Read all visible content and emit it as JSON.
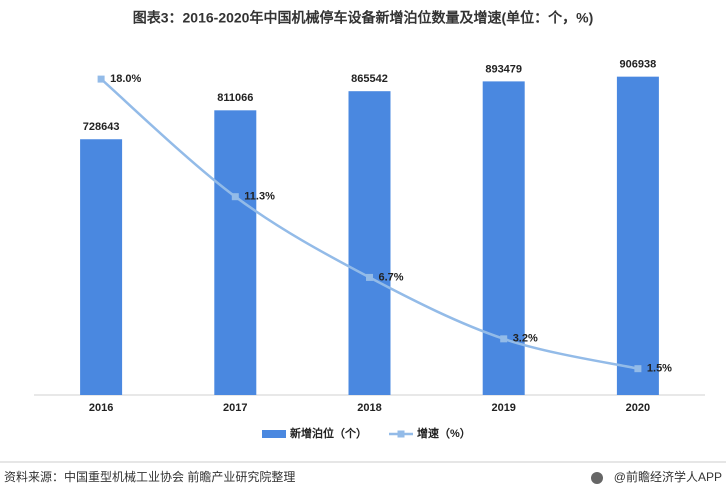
{
  "chart_data": {
    "type": "bar-line",
    "title": "图表3：2016-2020年中国机械停车设备新增泊位数量及增速(单位：个，%)",
    "categories": [
      "2016",
      "2017",
      "2018",
      "2019",
      "2020"
    ],
    "series": [
      {
        "name": "新增泊位（个）",
        "type": "bar",
        "color": "#4a88e0",
        "values": [
          728643,
          811066,
          865542,
          893479,
          906938
        ]
      },
      {
        "name": "增速（%）",
        "type": "line",
        "axis": "y2",
        "color": "#93bbe8",
        "values": [
          18.0,
          11.3,
          6.7,
          3.2,
          1.5
        ],
        "value_labels": [
          "18.0%",
          "11.3%",
          "6.7%",
          "3.2%",
          "1.5%"
        ]
      }
    ],
    "ylim": [
      0,
      1000000
    ],
    "y2lim": [
      0,
      20
    ],
    "legend": "bottom",
    "source": "资料来源：中国重型机械工业协会 前瞻产业研究院整理",
    "brand": "@前瞻经济学人APP"
  }
}
